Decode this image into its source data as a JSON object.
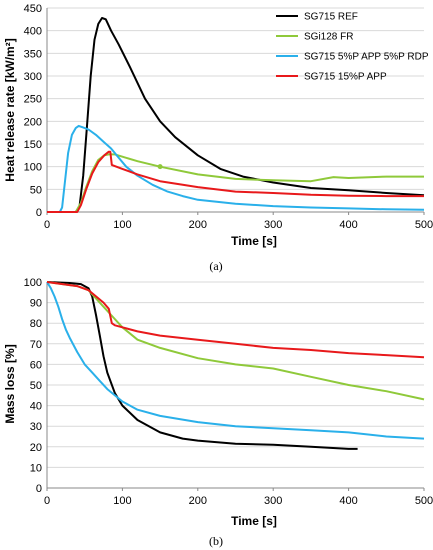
{
  "chart_data": [
    {
      "type": "line",
      "caption": "(a)",
      "xlabel": "Time [s]",
      "ylabel": "Heat release rate [kW/m²]",
      "xlim": [
        0,
        500
      ],
      "ylim": [
        0,
        450
      ],
      "xticks": [
        0,
        100,
        200,
        300,
        400,
        500
      ],
      "yticks": [
        0,
        50,
        100,
        150,
        200,
        250,
        300,
        350,
        400,
        450
      ],
      "legend_position": "top-right",
      "series": [
        {
          "name": "SG715 REF",
          "color": "#000000",
          "x": [
            0,
            38,
            43,
            48,
            53,
            58,
            63,
            68,
            73,
            78,
            85,
            95,
            110,
            130,
            150,
            170,
            200,
            230,
            260,
            300,
            350,
            400,
            450,
            500
          ],
          "y": [
            0,
            0,
            10,
            80,
            190,
            300,
            380,
            415,
            428,
            425,
            400,
            370,
            320,
            250,
            200,
            165,
            125,
            95,
            78,
            65,
            53,
            48,
            42,
            37
          ]
        },
        {
          "name": "SGi128 FR",
          "color": "#8fc93a",
          "x": [
            0,
            38,
            45,
            52,
            60,
            68,
            76,
            82,
            90,
            100,
            120,
            150,
            200,
            250,
            300,
            350,
            380,
            400,
            450,
            500
          ],
          "y": [
            0,
            0,
            20,
            55,
            90,
            115,
            125,
            127,
            127,
            122,
            112,
            100,
            83,
            73,
            70,
            68,
            77,
            75,
            78,
            78
          ],
          "marker_points": [
            {
              "x": 150,
              "y": 100
            }
          ]
        },
        {
          "name": "SG715 5%P APP 5%P RDP",
          "color": "#2ab0ea",
          "x": [
            0,
            17,
            20,
            24,
            28,
            33,
            38,
            42,
            47,
            55,
            65,
            75,
            85,
            95,
            105,
            120,
            140,
            160,
            180,
            200,
            250,
            300,
            350,
            400,
            450,
            500
          ],
          "y": [
            0,
            0,
            10,
            70,
            130,
            170,
            185,
            190,
            187,
            182,
            170,
            155,
            140,
            120,
            100,
            80,
            60,
            45,
            35,
            27,
            18,
            13,
            10,
            8,
            6,
            5
          ]
        },
        {
          "name": "SG715 15%P APP",
          "color": "#e8191b",
          "x": [
            0,
            40,
            45,
            52,
            60,
            68,
            76,
            82,
            84,
            86,
            92,
            100,
            120,
            150,
            180,
            200,
            250,
            300,
            350,
            400,
            450,
            500
          ],
          "y": [
            0,
            0,
            15,
            50,
            85,
            110,
            125,
            133,
            133,
            104,
            100,
            95,
            83,
            68,
            60,
            55,
            45,
            42,
            38,
            36,
            35,
            35
          ]
        }
      ]
    },
    {
      "type": "line",
      "caption": "(b)",
      "xlabel": "Time [s]",
      "ylabel": "Mass loss [%]",
      "xlim": [
        0,
        500
      ],
      "ylim": [
        0,
        100
      ],
      "xticks": [
        0,
        100,
        200,
        300,
        400,
        500
      ],
      "yticks": [
        0,
        10,
        20,
        30,
        40,
        50,
        60,
        70,
        80,
        90,
        100
      ],
      "series": [
        {
          "name": "SG715 REF",
          "color": "#000000",
          "x": [
            0,
            30,
            45,
            55,
            60,
            65,
            70,
            75,
            80,
            90,
            100,
            120,
            150,
            180,
            200,
            250,
            300,
            350,
            400,
            412
          ],
          "y": [
            100,
            99.5,
            99,
            97,
            93,
            84,
            74,
            64,
            56,
            46,
            40,
            33,
            27,
            24,
            23,
            21.5,
            21,
            20,
            19,
            19
          ]
        },
        {
          "name": "SGi128 FR",
          "color": "#8fc93a",
          "x": [
            0,
            40,
            55,
            65,
            75,
            85,
            100,
            120,
            150,
            200,
            250,
            300,
            350,
            400,
            450,
            500
          ],
          "y": [
            100,
            98,
            96,
            92,
            88,
            84,
            78,
            72,
            68,
            63,
            60,
            58,
            54,
            50,
            47,
            43
          ]
        },
        {
          "name": "SG715 5%P APP 5%P RDP",
          "color": "#2ab0ea",
          "x": [
            0,
            5,
            10,
            15,
            20,
            25,
            30,
            40,
            50,
            60,
            70,
            80,
            100,
            120,
            150,
            200,
            250,
            300,
            350,
            400,
            450,
            500
          ],
          "y": [
            100,
            97,
            93,
            88,
            82,
            77,
            73,
            66,
            60,
            56,
            52,
            48,
            42,
            38,
            35,
            32,
            30,
            29,
            28,
            27,
            25,
            24
          ]
        },
        {
          "name": "SG715 15%P APP",
          "color": "#e8191b",
          "x": [
            0,
            40,
            55,
            65,
            75,
            82,
            86,
            90,
            100,
            120,
            150,
            200,
            250,
            300,
            350,
            400,
            450,
            500
          ],
          "y": [
            100,
            98,
            96,
            93,
            90,
            87,
            80,
            79,
            78,
            76,
            74,
            72,
            70,
            68,
            67,
            65.5,
            64.5,
            63.5
          ]
        }
      ]
    }
  ]
}
